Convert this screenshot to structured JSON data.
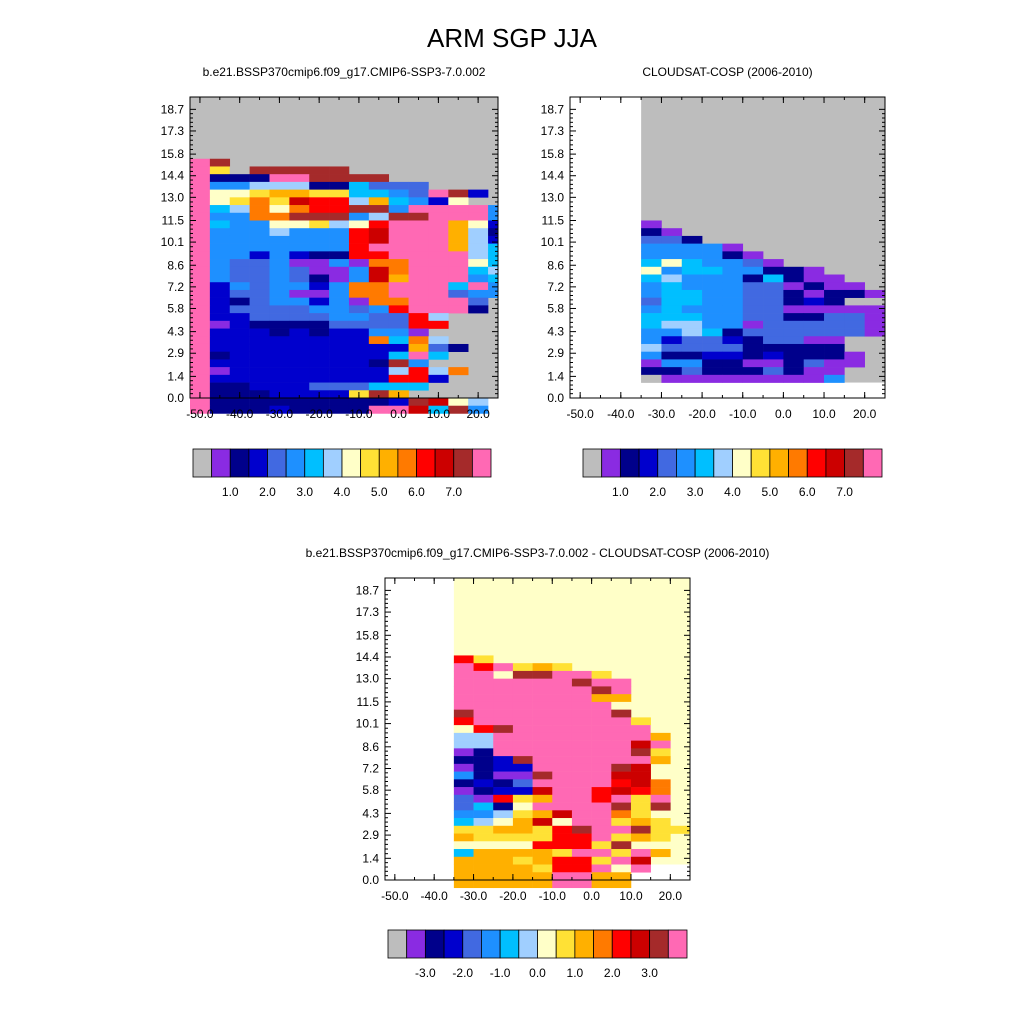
{
  "title": "ARM SGP JJA",
  "colors": {
    "missing": "#bdbdbd",
    "fill_value": "#ffffc8",
    "palette": [
      "#bdbdbd",
      "#8a2be2",
      "#00008b",
      "#0000cd",
      "#4169e1",
      "#1e90ff",
      "#00bfff",
      "#a0cfff",
      "#ffffc8",
      "#ffe135",
      "#ffb000",
      "#ff7a00",
      "#ff0000",
      "#cc0000",
      "#a52a2a",
      "#ff69b4"
    ]
  },
  "chart_data": [
    {
      "type": "heatmap",
      "title": "b.e21.BSSP370cmip6.f09_g17.CMIP6-SSP3-7.0.002",
      "xlim": [
        -52.5,
        25
      ],
      "ylim": [
        0,
        19.5
      ],
      "x_ticks": [
        "-50.0",
        "-40.0",
        "-30.0",
        "-20.0",
        "-10.0",
        "0.0",
        "10.0",
        "20.0"
      ],
      "y_ticks": [
        "0.0",
        "1.4",
        "2.9",
        "4.3",
        "5.8",
        "7.2",
        "8.6",
        "10.1",
        "11.5",
        "13.0",
        "14.4",
        "15.8",
        "17.3",
        "18.7"
      ],
      "x_edges_start": -52.5,
      "x_step": 5,
      "y_step": 0.5,
      "y_top": 15.5,
      "background": 0,
      "colorbar_labels": [
        "1.0",
        "2.0",
        "3.0",
        "4.0",
        "5.0",
        "6.0",
        "7.0"
      ],
      "rows": [
        "fe",
        "f90eeeee",
        "f222ffeeee",
        "f55777226444",
        "f889aa996654fe3",
        "f89b9dcc7a6538",
        "f67b8bccee5ffff55",
        "f55bbeee57eefff53",
        "f65588978cfffa83",
        "f5557555cdfffa7233",
        "f5555555cdfffa733",
        "f5555555cffffa7623",
        "f5535322ccffff7623",
        "f54451151bbfff867",
        "f54454115dbfff67",
        "f54454215dafff566",
        "f3545535bbfff6f5",
        "f3445115bbfff455",
        "f32455351bbfff4",
        "f344445545cfff2",
        "f3344445544c7",
        "f1322224444cc",
        "f33323233551",
        "f33333333b6b7",
        "f3333333333a42",
        "f2333333336f6",
        "f333333332e5",
        "f1333333337c7b",
        "f333333333cc3",
        "f22333444666",
        "f22233339ea",
        "f2222222223ed87",
        "f22232222ffd6e5"
      ]
    },
    {
      "type": "heatmap",
      "title": "CLOUDSAT-COSP (2006-2010)",
      "xlim": [
        -52.5,
        25
      ],
      "ylim": [
        0,
        19.5
      ],
      "x_ticks": [
        "-50.0",
        "-40.0",
        "-30.0",
        "-20.0",
        "-10.0",
        "0.0",
        "10.0",
        "20.0"
      ],
      "y_ticks": [
        "0.0",
        "1.4",
        "2.9",
        "4.3",
        "5.8",
        "7.2",
        "8.6",
        "10.1",
        "11.5",
        "13.0",
        "14.4",
        "15.8",
        "17.3",
        "18.7"
      ],
      "x_edges_start": -35,
      "x_step": 5,
      "y_step": 0.5,
      "y_top": 11.5,
      "background": 0,
      "empty_bottom": 1.0,
      "colorbar_labels": [
        "1.0",
        "2.0",
        "3.0",
        "4.0",
        "5.0",
        "6.0",
        "7.0"
      ],
      "rows": [
        "1",
        "21",
        "442",
        "55551",
        "555521",
        "6865541",
        "856655221",
        "6755526211",
        "56555441211",
        "566554421221",
        "4665544232",
        "565554411111",
        "666554422441",
        "677551444441",
        "557624444441",
        "5344324411",
        "7444422222",
        "52233232221",
        "15522112411",
        "2242224211",
        "0111111115"
      ]
    },
    {
      "type": "heatmap",
      "title": "b.e21.BSSP370cmip6.f09_g17.CMIP6-SSP3-7.0.002 - CLOUDSAT-COSP (2006-2010)",
      "xlim": [
        -52.5,
        25
      ],
      "ylim": [
        0,
        19.5
      ],
      "x_ticks": [
        "-50.0",
        "-40.0",
        "-30.0",
        "-20.0",
        "-10.0",
        "0.0",
        "10.0",
        "20.0"
      ],
      "y_ticks": [
        "0.0",
        "1.4",
        "2.9",
        "4.3",
        "5.8",
        "7.2",
        "8.6",
        "10.1",
        "11.5",
        "13.0",
        "14.4",
        "15.8",
        "17.3",
        "18.7"
      ],
      "x_edges_start": -35,
      "x_step": 5,
      "y_step": 0.5,
      "y_top": 14.5,
      "background": 8,
      "empty_bottom": 1.0,
      "colorbar_labels": [
        "-3.0",
        "-2.0",
        "-1.0",
        "0.0",
        "1.0",
        "2.0",
        "3.0"
      ],
      "rows": [
        "c9",
        "fcf9a9",
        "ff eeff9",
        "ffffffeff",
        "fffffffef",
        "fffffffaa",
        "ffffffff8",
        "efffffffe",
        "cffffffff9",
        "8cefffffff8",
        "77ffffffffa",
        "77fffffffdf",
        "12fffffffe9",
        "223effffffa",
        "1233ffffed",
        "5211efffdd",
        "2324ffffcdb",
        "1233dffcdcb",
        "41c9affcf9f",
        "4628ffffe9e",
        "5579adffb9",
        "678ad8ff9a9",
        "99aa9ceffe99",
        "a9999ccf9a9",
        "8888ccc9e",
        "6aaaa9ff9fa",
        "aaa9acc9fd",
        "aaaa9ccf8f",
        "aaaaaffaa",
        "aaaaaffaa"
      ]
    }
  ]
}
